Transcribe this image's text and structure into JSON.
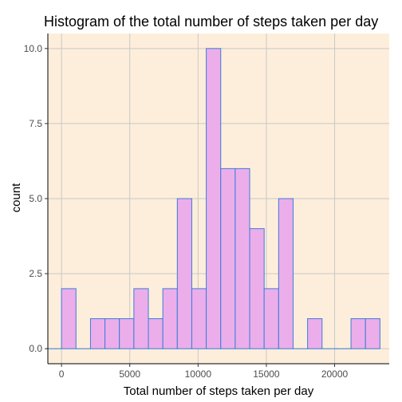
{
  "chart_data": {
    "type": "bar",
    "title": "Histogram of the total number of steps taken per day",
    "xlabel": "Total number of steps taken per day",
    "ylabel": "count",
    "xlim": [
      -1000,
      24000
    ],
    "ylim": [
      -0.5,
      10.5
    ],
    "x_ticks": [
      0,
      5000,
      10000,
      15000,
      20000
    ],
    "y_ticks": [
      0,
      2.5,
      5,
      7.5,
      10
    ],
    "x_tick_labels": [
      "0",
      "5000",
      "10000",
      "15000",
      "20000"
    ],
    "y_tick_labels": [
      "0.0",
      "2.5",
      "5.0",
      "7.5",
      "10.0"
    ],
    "bin_width": 1060,
    "bin_centers": [
      -530,
      530,
      1590,
      2650,
      3710,
      4770,
      5830,
      6890,
      7950,
      9010,
      10070,
      11130,
      12190,
      13250,
      14310,
      15370,
      16430,
      17490,
      18550,
      19610,
      20670,
      21730,
      22790
    ],
    "values": [
      0,
      2,
      0,
      1,
      1,
      1,
      2,
      1,
      2,
      5,
      2,
      10,
      6,
      6,
      4,
      2,
      5,
      0,
      1,
      0,
      0,
      1,
      1
    ],
    "grid": true,
    "colors": {
      "panel_background": "#fdeedb",
      "grid": "#c8c8c8",
      "bar_fill": "#ebaeeb",
      "bar_stroke": "#3b7dd8",
      "axis_line": "#000000"
    }
  }
}
